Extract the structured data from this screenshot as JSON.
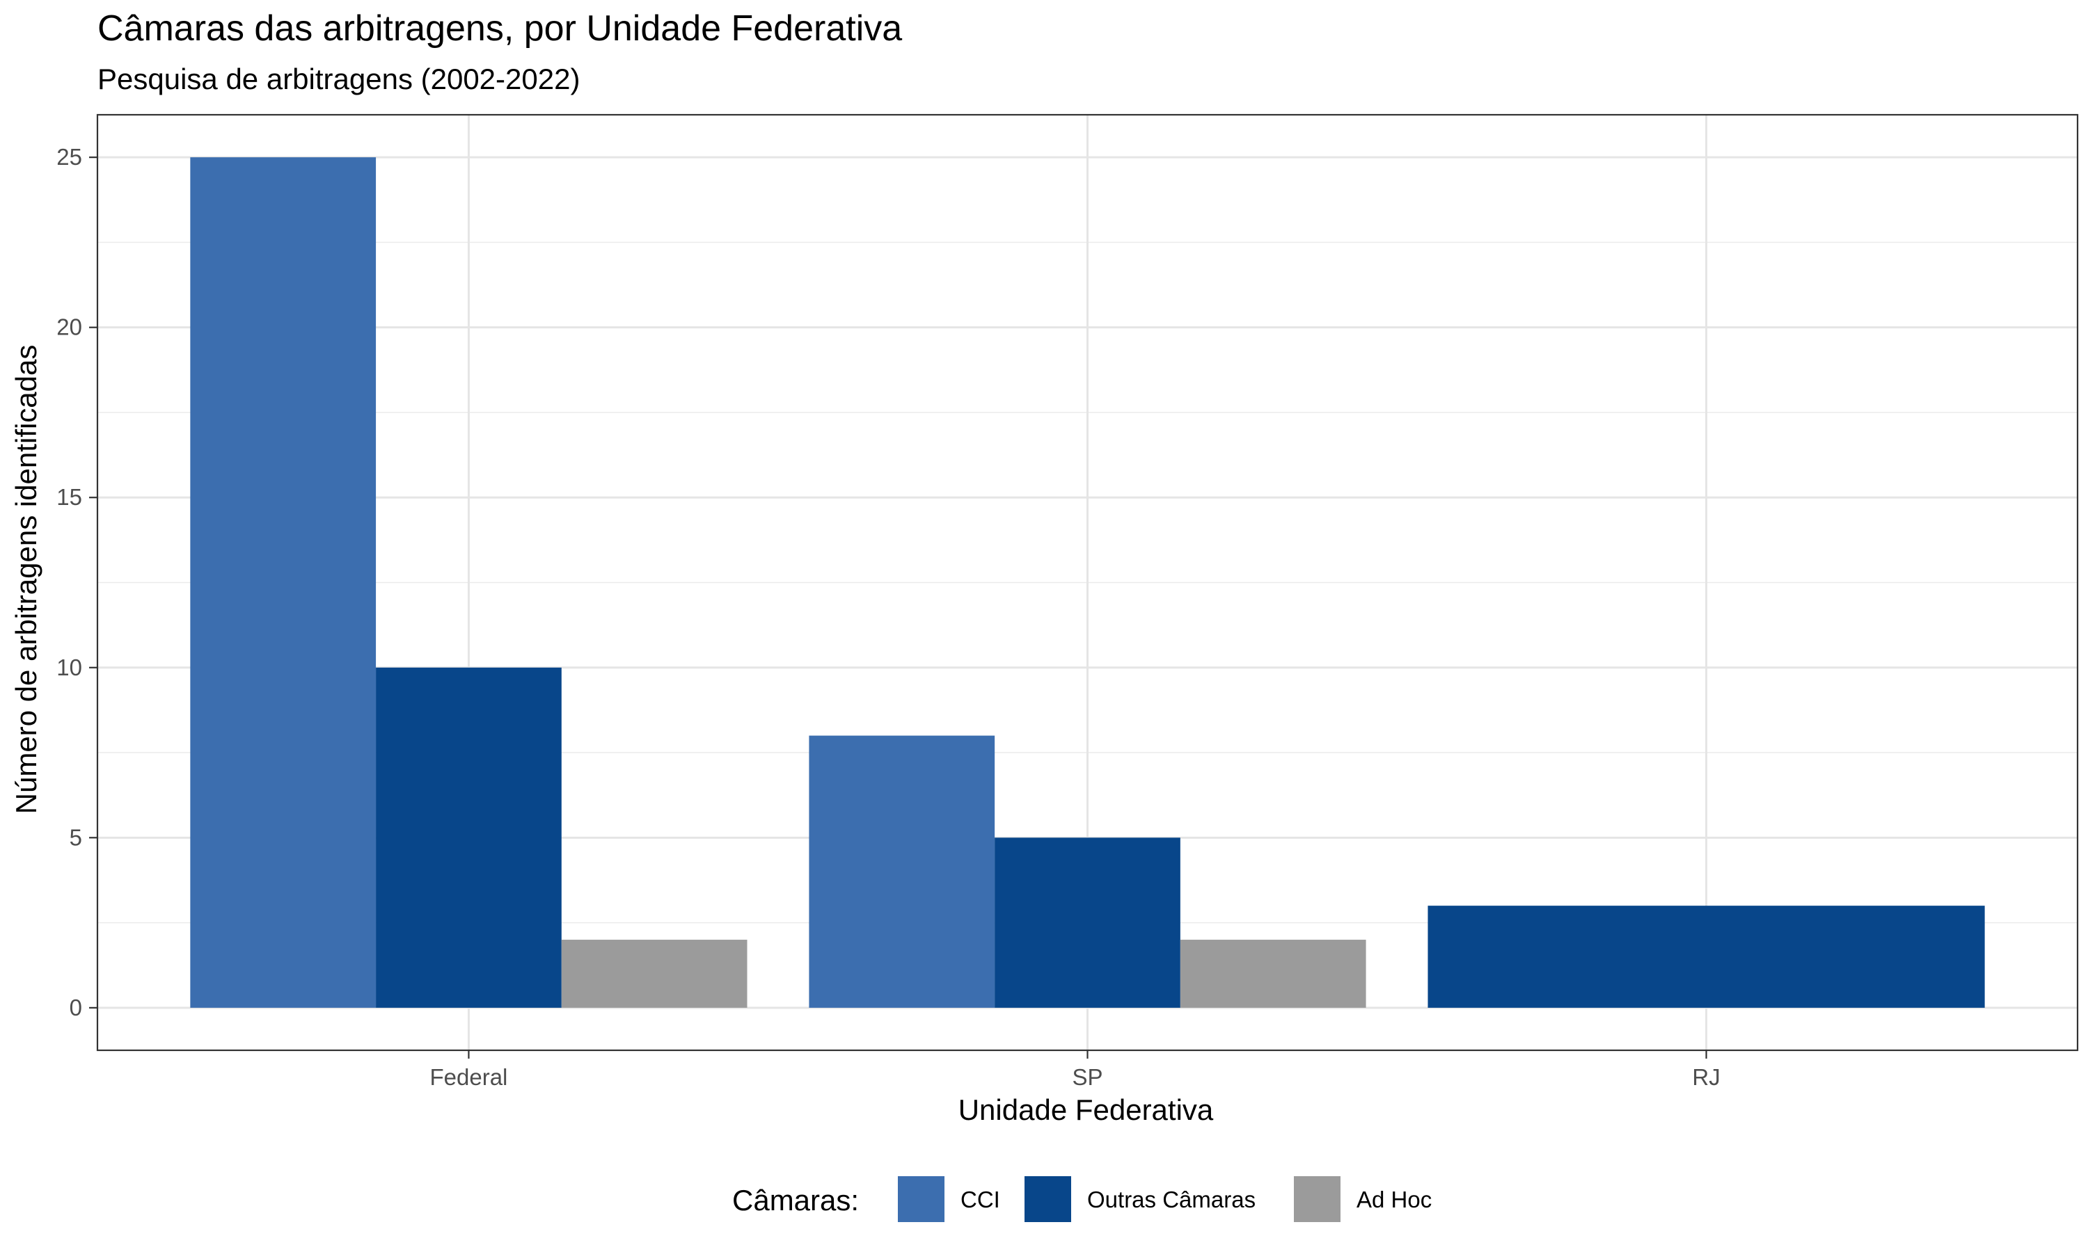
{
  "chart_data": {
    "type": "bar",
    "title": "Câmaras das arbitragens, por Unidade Federativa",
    "subtitle": "Pesquisa de arbitragens (2002-2022)",
    "xlabel": "Unidade Federativa",
    "ylabel": "Número de arbitragens identificadas",
    "categories": [
      "Federal",
      "SP",
      "RJ"
    ],
    "series": [
      {
        "name": "CCI",
        "color": "#3C6EAF",
        "values": [
          25,
          8,
          null
        ]
      },
      {
        "name": "Outras Câmaras",
        "color": "#08468A",
        "values": [
          10,
          5,
          3
        ]
      },
      {
        "name": "Ad Hoc",
        "color": "#9B9B9B",
        "values": [
          2,
          2,
          null
        ]
      }
    ],
    "ylim": [
      -1.25,
      26.25
    ],
    "yticks": [
      0,
      5,
      10,
      15,
      20,
      25
    ],
    "grid": true,
    "legend": {
      "title": "Câmaras:",
      "placement": "bottom"
    }
  }
}
